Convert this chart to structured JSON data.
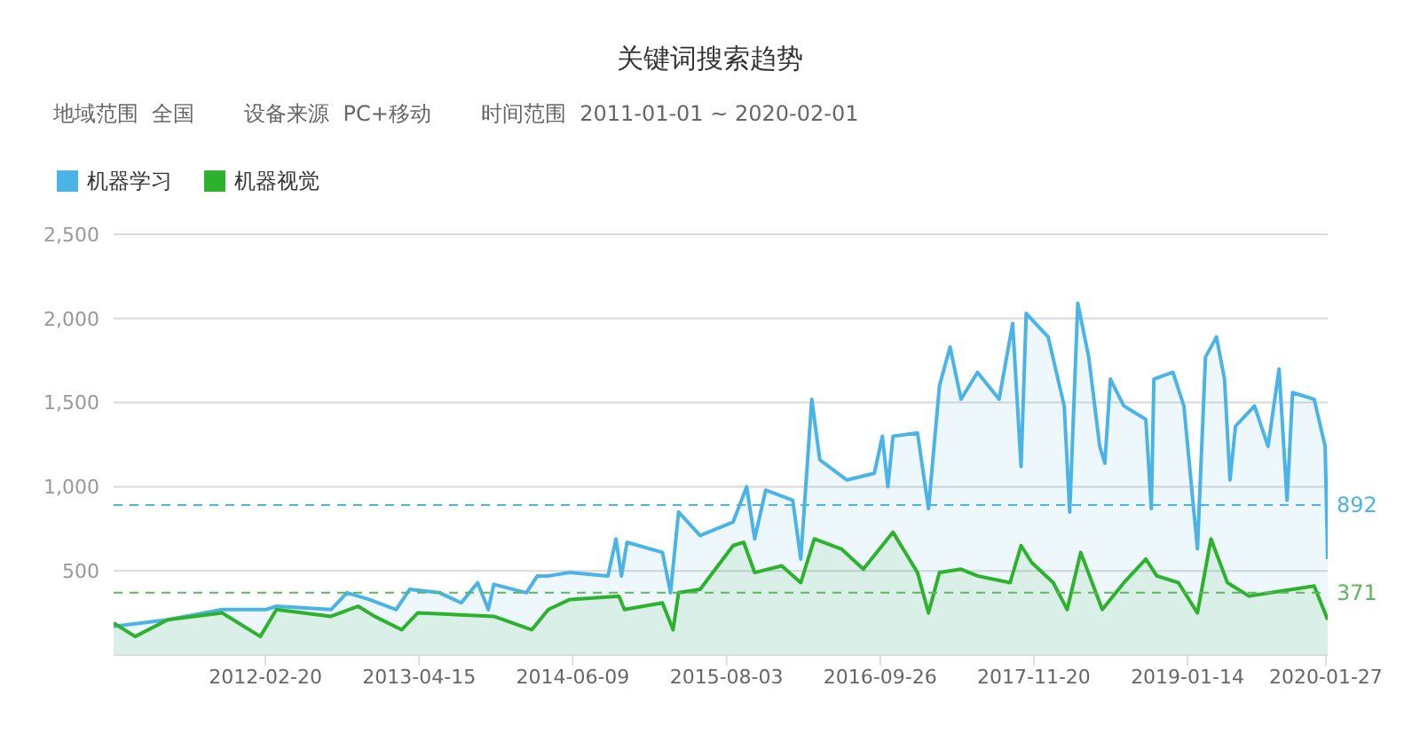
{
  "chart_data": {
    "type": "area",
    "title": "关键词搜索趋势",
    "annotations": [
      "地域范围  全国",
      "设备来源  PC+移动",
      "时间范围  2011-01-01 ~ 2020-02-01"
    ],
    "xlim": [
      "2011-01-01",
      "2020-02-01"
    ],
    "xticks": [
      "2012-02-20",
      "2013-04-15",
      "2014-06-09",
      "2015-08-03",
      "2016-09-26",
      "2017-11-20",
      "2019-01-14",
      "2020-01-27"
    ],
    "ylim": [
      0,
      2500
    ],
    "yticks": [
      {
        "value": 500,
        "label": "500"
      },
      {
        "value": 1000,
        "label": "1,000"
      },
      {
        "value": 1500,
        "label": "1,500"
      },
      {
        "value": 2000,
        "label": "2,000"
      },
      {
        "value": 2500,
        "label": "2,500"
      }
    ],
    "grid": "y",
    "legend": "top left",
    "ref_lines": [
      {
        "axis": "y",
        "value": 892,
        "label": "892",
        "color": "#4bb4e6",
        "line_style": "dashed"
      },
      {
        "axis": "y",
        "value": 371,
        "label": "371",
        "color": "#5cb85c",
        "line_style": "dashed"
      }
    ],
    "series": [
      {
        "name": "机器学习",
        "color": "#4bb4e6",
        "x": [
          "2011-01-01",
          "2011-05-29",
          "2011-10-25",
          "2012-02-21",
          "2012-03-21",
          "2012-08-17",
          "2012-09-30",
          "2012-11-29",
          "2013-02-11",
          "2013-03-20",
          "2013-06-10",
          "2013-08-08",
          "2013-09-22",
          "2013-10-21",
          "2013-11-05",
          "2014-02-02",
          "2014-03-04",
          "2014-04-03",
          "2014-06-01",
          "2014-09-13",
          "2014-10-05",
          "2014-10-20",
          "2014-11-04",
          "2015-02-09",
          "2015-03-03",
          "2015-03-25",
          "2015-05-23",
          "2015-08-21",
          "2015-09-27",
          "2015-10-19",
          "2015-11-18",
          "2016-01-31",
          "2016-02-22",
          "2016-03-23",
          "2016-04-14",
          "2016-06-27",
          "2016-09-10",
          "2016-10-02",
          "2016-10-17",
          "2016-10-31",
          "2017-01-06",
          "2017-02-05",
          "2017-03-07",
          "2017-04-05",
          "2017-05-05",
          "2017-06-19",
          "2017-08-17",
          "2017-09-23",
          "2017-10-16",
          "2017-10-30",
          "2017-12-29",
          "2018-02-11",
          "2018-02-26",
          "2018-03-20",
          "2018-04-19",
          "2018-05-19",
          "2018-06-02",
          "2018-06-17",
          "2018-07-24",
          "2018-09-22",
          "2018-10-07",
          "2018-10-14",
          "2018-12-05",
          "2019-01-04",
          "2019-02-10",
          "2019-03-04",
          "2019-04-03",
          "2019-04-25",
          "2019-05-10",
          "2019-05-25",
          "2019-07-16",
          "2019-08-22",
          "2019-09-21",
          "2019-10-13",
          "2019-10-28",
          "2019-12-26",
          "2020-01-25",
          "2020-02-01"
        ],
        "values": [
          170,
          210,
          270,
          270,
          290,
          270,
          370,
          330,
          270,
          390,
          370,
          310,
          430,
          270,
          420,
          370,
          470,
          470,
          490,
          470,
          690,
          470,
          670,
          610,
          370,
          850,
          710,
          790,
          1000,
          690,
          980,
          920,
          570,
          1520,
          1160,
          1040,
          1080,
          1300,
          1000,
          1300,
          1320,
          870,
          1600,
          1830,
          1520,
          1680,
          1520,
          1970,
          1120,
          2030,
          1890,
          1480,
          850,
          2090,
          1770,
          1240,
          1140,
          1640,
          1480,
          1400,
          870,
          1640,
          1680,
          1480,
          630,
          1770,
          1890,
          1640,
          1040,
          1360,
          1480,
          1240,
          1700,
          920,
          1560,
          1520,
          1240,
          570
        ]
      },
      {
        "name": "机器视觉",
        "color": "#2db22d",
        "x": [
          "2011-01-01",
          "2011-03-01",
          "2011-05-29",
          "2011-10-25",
          "2012-02-06",
          "2012-03-21",
          "2012-08-17",
          "2012-10-30",
          "2012-12-14",
          "2013-02-26",
          "2013-04-11",
          "2013-11-05",
          "2014-02-17",
          "2014-04-03",
          "2014-06-01",
          "2014-10-13",
          "2014-10-28",
          "2015-02-09",
          "2015-03-10",
          "2015-03-25",
          "2015-05-23",
          "2015-08-21",
          "2015-09-19",
          "2015-10-19",
          "2016-01-01",
          "2016-02-22",
          "2016-03-30",
          "2016-06-12",
          "2016-08-11",
          "2016-10-31",
          "2017-01-06",
          "2017-02-05",
          "2017-03-07",
          "2017-05-05",
          "2017-06-19",
          "2017-09-16",
          "2017-10-16",
          "2017-11-14",
          "2018-01-12",
          "2018-02-19",
          "2018-03-28",
          "2018-05-26",
          "2018-07-24",
          "2018-09-22",
          "2018-10-22",
          "2018-12-20",
          "2019-02-10",
          "2019-03-19",
          "2019-05-03",
          "2019-07-01",
          "2019-08-29",
          "2019-10-28",
          "2019-12-26",
          "2020-02-01"
        ],
        "values": [
          190,
          110,
          210,
          250,
          110,
          270,
          230,
          290,
          230,
          150,
          250,
          230,
          150,
          270,
          330,
          350,
          270,
          310,
          150,
          370,
          390,
          650,
          670,
          490,
          530,
          430,
          690,
          630,
          510,
          730,
          490,
          250,
          490,
          510,
          470,
          430,
          650,
          550,
          430,
          270,
          610,
          270,
          430,
          570,
          470,
          430,
          250,
          690,
          430,
          350,
          370,
          390,
          410,
          210
        ]
      }
    ]
  }
}
